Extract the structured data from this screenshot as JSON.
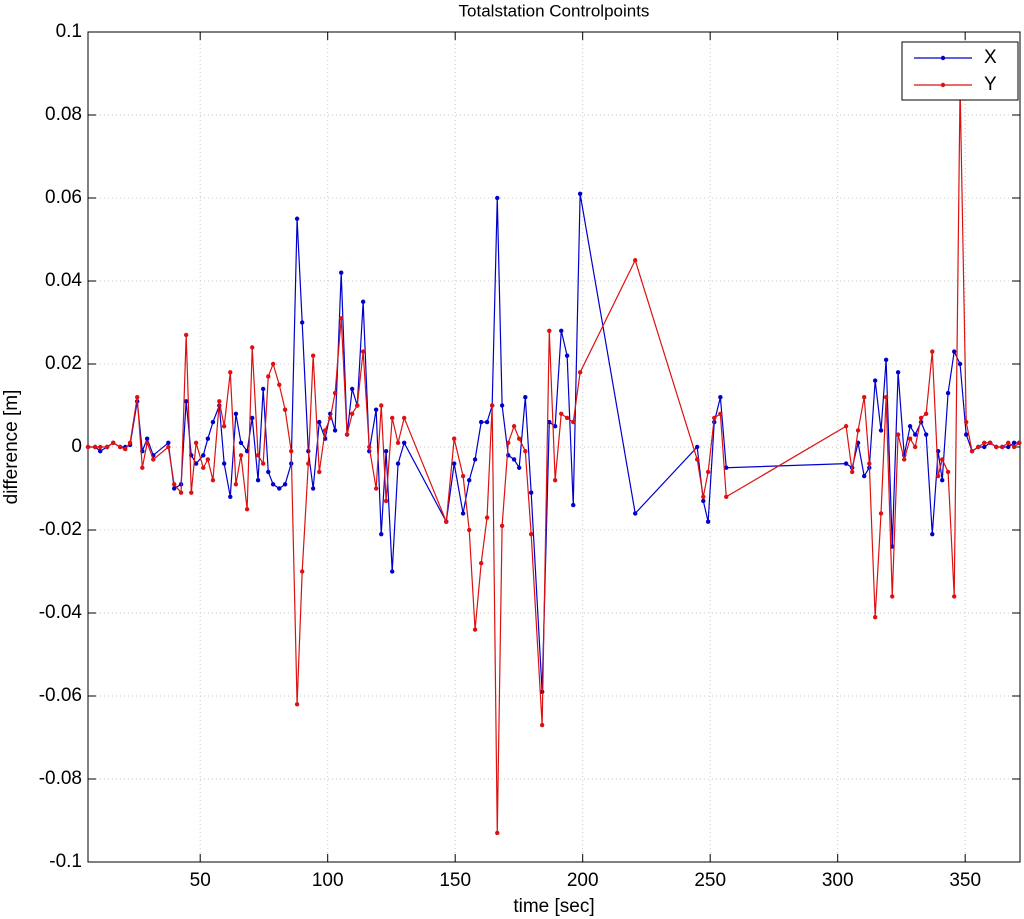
{
  "chart_data": {
    "type": "line",
    "title": "Totalstation Controlpoints",
    "x_label": "time [sec]",
    "y_label": "difference [m]",
    "xlim": [
      6,
      371.5
    ],
    "ylim": [
      -0.1,
      0.1
    ],
    "xticks": [
      50,
      100,
      150,
      200,
      250,
      300,
      350
    ],
    "yticks": [
      -0.1,
      -0.08,
      -0.06,
      -0.04,
      -0.02,
      0,
      0.02,
      0.04,
      0.06,
      0.08,
      0.1
    ],
    "grid": true,
    "legend": "northeast",
    "x": [
      6,
      8.8,
      10.8,
      13.5,
      15.9,
      18.6,
      20.6,
      22.5,
      25.3,
      27.3,
      29.2,
      31.6,
      37.5,
      39.8,
      42.5,
      44.5,
      46.5,
      48.4,
      51.2,
      53,
      55,
      57.5,
      59.4,
      61.8,
      64,
      66,
      68.4,
      70.4,
      72.7,
      74.7,
      76.7,
      78.6,
      81,
      83.3,
      85.7,
      88,
      90,
      92.4,
      94.3,
      96.7,
      99,
      101,
      102.9,
      105.3,
      107.6,
      109.6,
      111.6,
      113.9,
      116.3,
      119,
      121,
      122.9,
      125.3,
      127.6,
      130,
      146.5,
      149.6,
      153.1,
      155.5,
      157.8,
      160.2,
      162.5,
      164.5,
      166.5,
      168.4,
      170.8,
      173.1,
      175.1,
      177.5,
      179.8,
      184.1,
      186.9,
      189.2,
      191.6,
      193.9,
      196.3,
      199,
      220.6,
      244.9,
      247.3,
      249.2,
      251.6,
      254,
      256.3,
      303.3,
      305.7,
      308,
      310.4,
      312.4,
      314.7,
      317,
      319,
      321.4,
      323.7,
      326.1,
      328.4,
      330.4,
      332.7,
      334.7,
      337.1,
      339.4,
      341,
      343.3,
      345.7,
      348,
      350.4,
      352.7,
      355.1,
      357.5,
      359.8,
      362.2,
      364.5,
      366.9,
      369.2,
      371.2
    ],
    "series": [
      {
        "name": "X",
        "color": "#0000cc",
        "values": [
          0,
          0,
          -0.001,
          0,
          0.001,
          0,
          0,
          0.0005,
          0.011,
          -0.001,
          0.002,
          -0.002,
          0.001,
          -0.01,
          -0.009,
          0.011,
          -0.002,
          -0.004,
          -0.002,
          0.002,
          0.006,
          0.01,
          -0.004,
          -0.012,
          0.008,
          0.001,
          -0.001,
          0.007,
          -0.008,
          0.014,
          -0.006,
          -0.009,
          -0.01,
          -0.009,
          -0.004,
          0.055,
          0.03,
          -0.001,
          -0.01,
          0.006,
          0.002,
          0.008,
          0.004,
          0.042,
          0.003,
          0.014,
          0.01,
          0.035,
          -0.001,
          0.009,
          -0.021,
          -0.001,
          -0.03,
          -0.004,
          0.001,
          -0.018,
          -0.004,
          -0.016,
          -0.008,
          -0.003,
          0.006,
          0.006,
          0.01,
          0.06,
          0.01,
          -0.002,
          -0.003,
          -0.005,
          0.012,
          -0.011,
          -0.059,
          0.006,
          0.005,
          0.028,
          0.022,
          -0.014,
          0.061,
          -0.016,
          0,
          -0.013,
          -0.018,
          0.006,
          0.012,
          -0.005,
          -0.004,
          -0.005,
          0.001,
          -0.007,
          -0.005,
          0.016,
          0.004,
          0.021,
          -0.024,
          0.018,
          -0.002,
          0.005,
          0.003,
          0.006,
          0.003,
          -0.021,
          -0.001,
          -0.008,
          0.013,
          0.023,
          0.02,
          0.003,
          -0.001,
          0,
          0,
          0.001,
          0,
          0,
          0,
          0.001,
          0.001
        ]
      },
      {
        "name": "Y",
        "color": "#dd1111",
        "values": [
          0,
          0,
          0,
          0,
          0.001,
          0,
          -0.0005,
          0.001,
          0.012,
          -0.005,
          0.001,
          -0.003,
          0,
          -0.009,
          -0.011,
          0.027,
          -0.011,
          0.001,
          -0.005,
          -0.003,
          -0.008,
          0.011,
          0.005,
          0.018,
          -0.009,
          -0.002,
          -0.015,
          0.024,
          -0.002,
          -0.004,
          0.017,
          0.02,
          0.015,
          0.009,
          -0.001,
          -0.062,
          -0.03,
          -0.004,
          0.022,
          -0.006,
          0.004,
          0.007,
          0.013,
          0.031,
          0.003,
          0.008,
          0.01,
          0.023,
          0,
          -0.01,
          0.01,
          -0.013,
          0.007,
          0.001,
          0.007,
          -0.018,
          0.002,
          -0.007,
          -0.02,
          -0.044,
          -0.028,
          -0.017,
          0.01,
          -0.093,
          -0.019,
          0.001,
          0.005,
          0.002,
          -0.001,
          -0.021,
          -0.067,
          0.028,
          -0.008,
          0.008,
          0.007,
          0.006,
          0.018,
          0.045,
          -0.003,
          -0.012,
          -0.006,
          0.007,
          0.008,
          -0.012,
          0.005,
          -0.006,
          0.004,
          0.012,
          -0.004,
          -0.041,
          -0.016,
          0.012,
          -0.036,
          0.003,
          -0.003,
          0.002,
          0,
          0.007,
          0.008,
          0.023,
          -0.007,
          -0.003,
          -0.006,
          -0.036,
          0.087,
          0.006,
          -0.001,
          0,
          0.001,
          0.001,
          0,
          0,
          0.001,
          0,
          0.001
        ]
      }
    ]
  }
}
